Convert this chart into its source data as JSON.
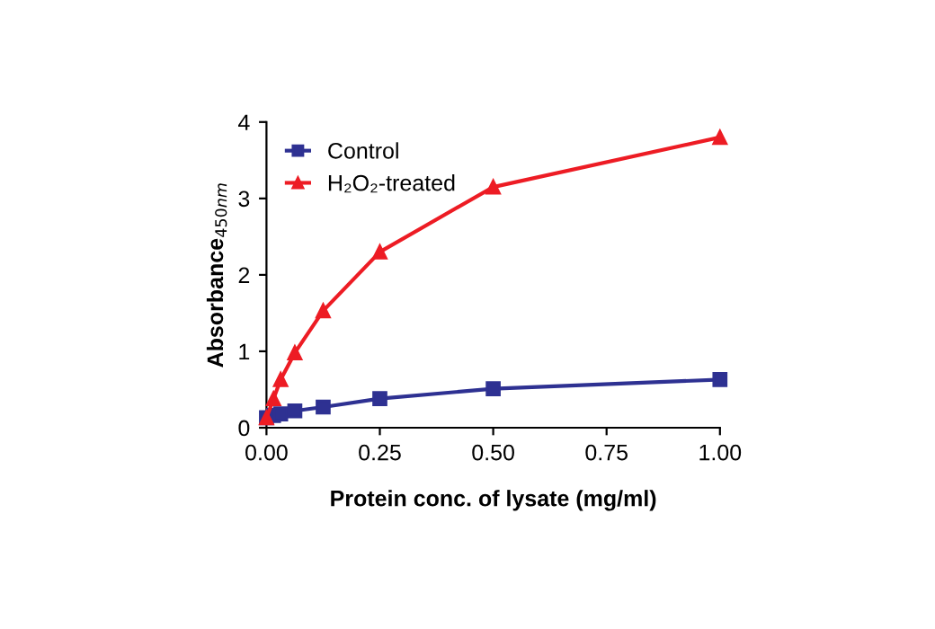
{
  "chart_data": {
    "type": "line",
    "xlabel": "Protein conc. of lysate (mg/ml)",
    "ylabel": "Absorbance$_{450nm}$",
    "x": [
      0,
      0.0156,
      0.03125,
      0.0625,
      0.125,
      0.25,
      0.5,
      1
    ],
    "series": [
      {
        "name": "Control",
        "color": "#2e3192",
        "marker": "square",
        "values": [
          0.13,
          0.16,
          0.18,
          0.22,
          0.27,
          0.38,
          0.51,
          0.63
        ]
      },
      {
        "name": "H₂O₂-treated",
        "color": "#ed1c24",
        "marker": "triangle",
        "values": [
          0.13,
          0.38,
          0.63,
          0.98,
          1.53,
          2.3,
          3.15,
          3.8
        ]
      }
    ],
    "xlim": [
      0,
      1
    ],
    "ylim": [
      0,
      4
    ],
    "xticks": [
      {
        "value": 0,
        "label": "0.00"
      },
      {
        "value": 0.25,
        "label": "0.25"
      },
      {
        "value": 0.5,
        "label": "0.50"
      },
      {
        "value": 0.75,
        "label": "0.75"
      },
      {
        "value": 1,
        "label": "1.00"
      }
    ],
    "yticks": [
      0,
      1,
      2,
      3,
      4
    ],
    "grid": false,
    "legend": "top left",
    "line_style": "solid"
  }
}
